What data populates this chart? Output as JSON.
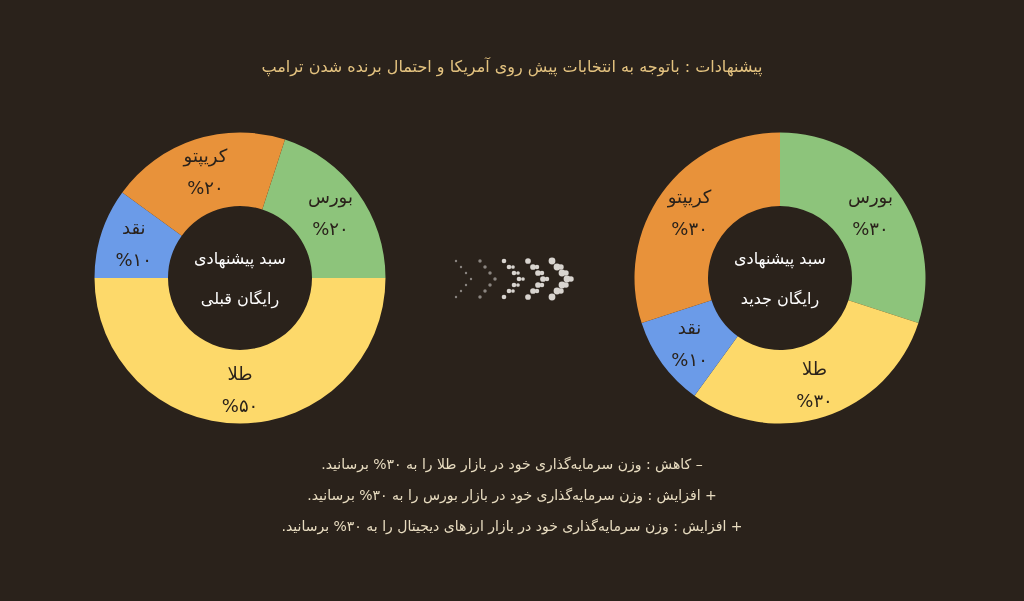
{
  "chart_data": [
    {
      "type": "other",
      "title": "پیشنهادات : باتوجه به انتخابات پیش روی آمریکا و احتمال برنده شدن ترامپ"
    },
    {
      "type": "donut",
      "title": "سبد پیشنهادی\nرایگان قبلی",
      "categories": [
        "بورس",
        "طلا",
        "نقد",
        "کریپتو"
      ],
      "values": [
        20,
        50,
        10,
        20
      ],
      "value_labels": [
        "%۲۰",
        "%۵۰",
        "%۱۰",
        "%۲۰"
      ],
      "colors": [
        "#8dc47b",
        "#fdd96a",
        "#6b9be8",
        "#e8923a"
      ]
    },
    {
      "type": "donut",
      "title": "سبد پیشنهادی\nرایگان جدید",
      "categories": [
        "بورس",
        "طلا",
        "نقد",
        "کریپتو"
      ],
      "values": [
        30,
        30,
        10,
        30
      ],
      "value_labels": [
        "%۳۰",
        "%۳۰",
        "%۱۰",
        "%۳۰"
      ],
      "colors": [
        "#8dc47b",
        "#fdd96a",
        "#6b9be8",
        "#e8923a"
      ]
    },
    {
      "type": "other",
      "annotations": [
        "–  کاهش : وزن سرمایه‌گذاری خود در بازار طلا را به ۳۰% برسانید.",
        "+  افزایش : وزن سرمایه‌گذاری خود در بازار بورس را به ۳۰% برسانید.",
        "+  افزایش : وزن سرمایه‌گذاری خود در بازار ارزهای دیجیتال  را به ۳۰%  برسانید."
      ]
    }
  ]
}
